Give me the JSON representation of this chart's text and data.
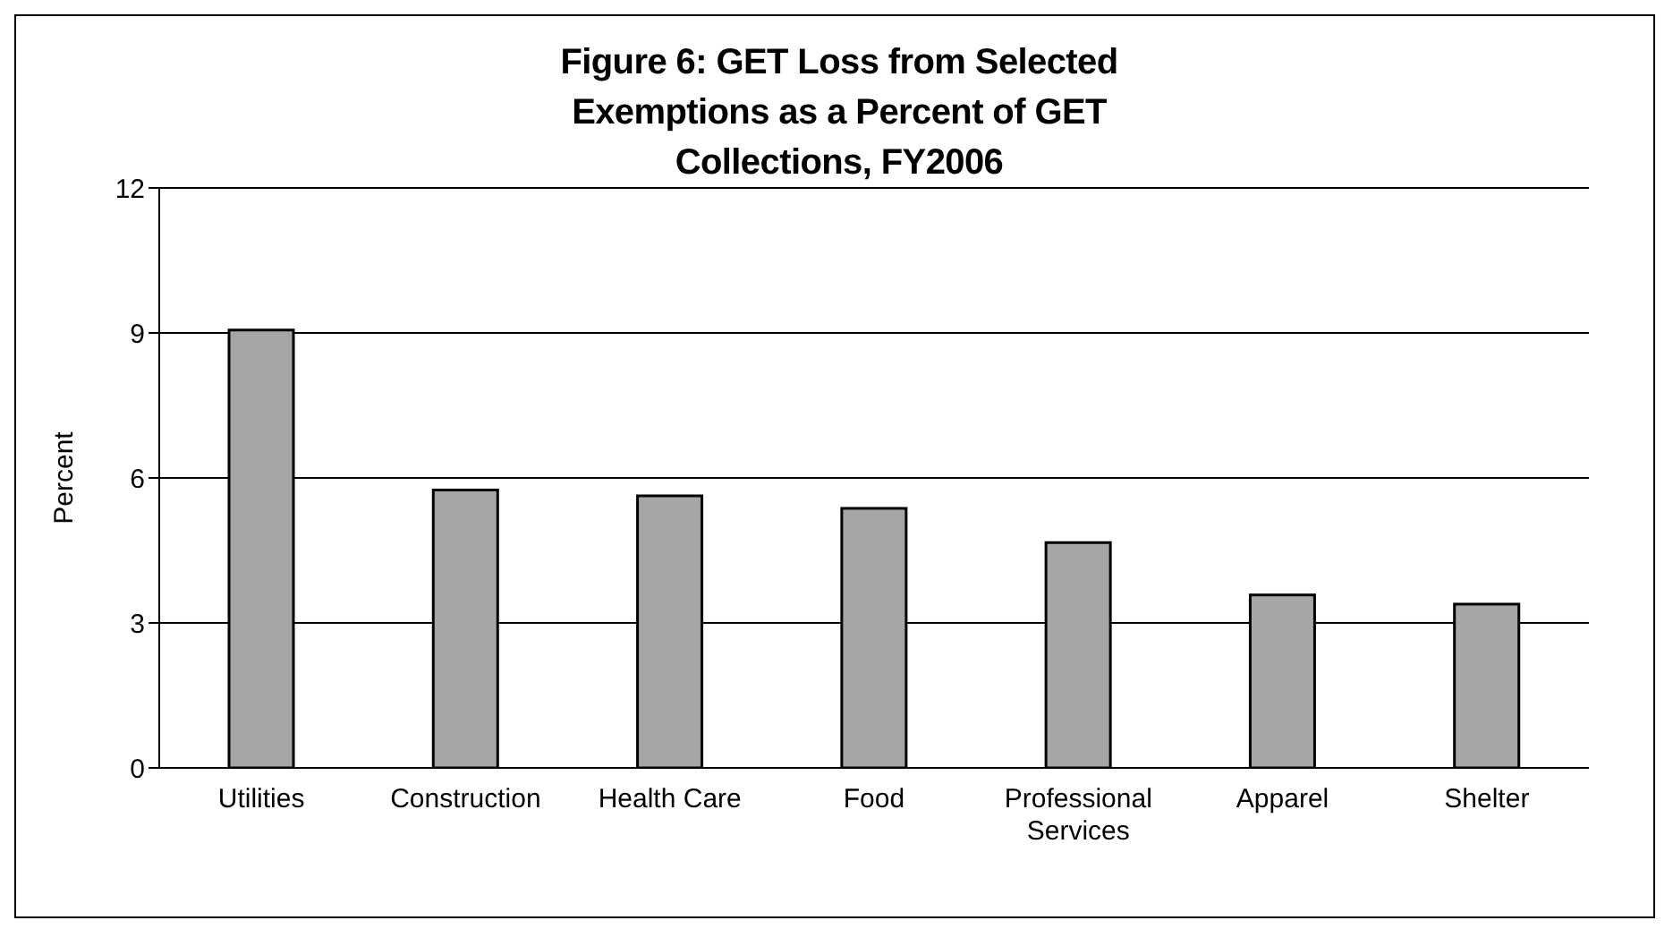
{
  "chart_data": {
    "type": "bar",
    "title": "Figure 6: GET Loss from Selected Exemptions as a Percent of GET Collections, FY2006",
    "ylabel": "Percent",
    "categories": [
      "Utilities",
      "Construction",
      "Health Care",
      "Food",
      "Professional Services",
      "Apparel",
      "Shelter"
    ],
    "values": [
      9.06,
      5.75,
      5.63,
      5.37,
      4.66,
      3.58,
      3.39
    ],
    "color": "#a6a6a6",
    "ylim": [
      0,
      12
    ],
    "yticks": [
      0,
      3,
      6,
      9,
      12
    ],
    "grid": "y"
  }
}
